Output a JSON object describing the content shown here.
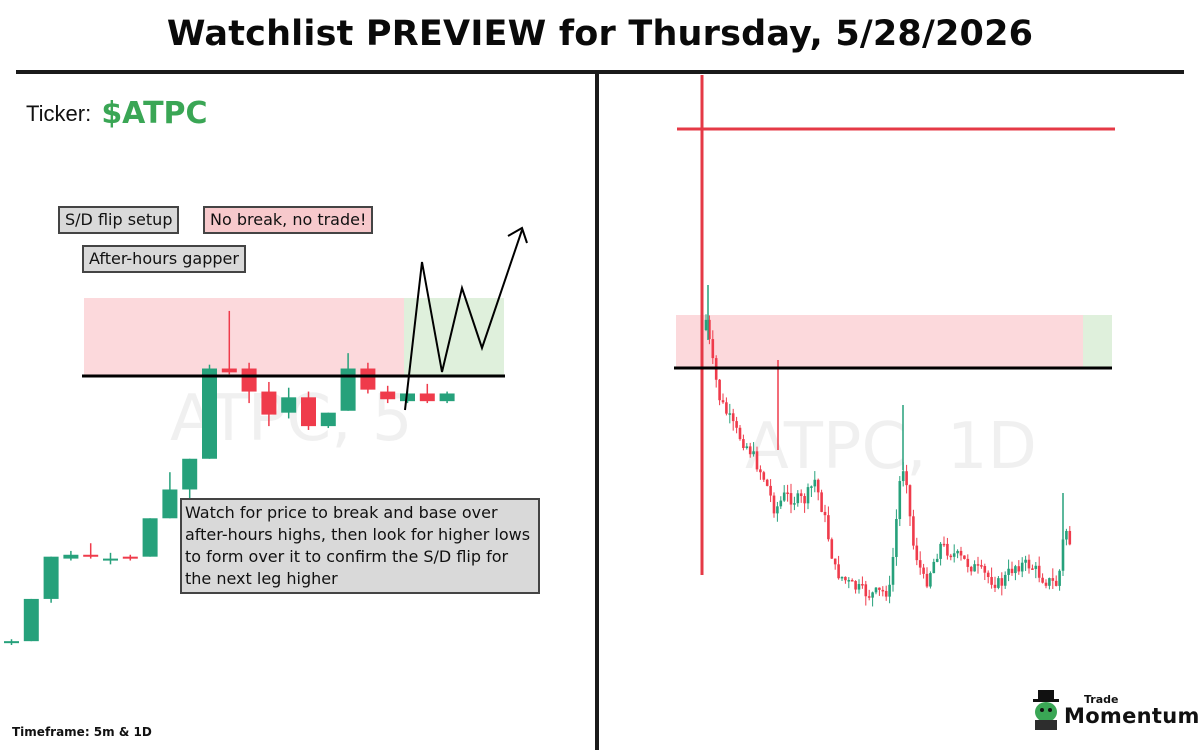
{
  "header": {
    "title": "Watchlist PREVIEW for Thursday, 5/28/2026"
  },
  "ticker": {
    "label": "Ticker:",
    "symbol": "$ATPC"
  },
  "tags": {
    "setup": "S/D flip setup",
    "warning": "No break, no trade!",
    "gapper": "After-hours gapper"
  },
  "note": "Watch for price to break and base over after-hours highs, then look for higher lows to form over it to confirm the S/D flip for the next leg higher",
  "footer": {
    "timeframe": "Timeframe: 5m & 1D"
  },
  "brand": {
    "line1": "Trade",
    "line2": "Momentum"
  },
  "colors": {
    "up": "#26a17b",
    "down": "#ef3b4b",
    "supply_zone": "#fcd9dc",
    "target_zone": "#dff0dc",
    "level": "#000000",
    "brand_green": "#3aa655"
  },
  "chart_data": [
    {
      "type": "candlestick",
      "watermark": "ATPC, 5",
      "timeframe": "5m",
      "key_level": "after-hours high (breakout line)",
      "supply_zone": "above key level",
      "candles": [
        {
          "o": 0.1,
          "h": 0.3,
          "l": 0.0,
          "c": 0.2
        },
        {
          "o": 0.2,
          "h": 2.4,
          "l": 0.2,
          "c": 2.4
        },
        {
          "o": 2.4,
          "h": 4.6,
          "l": 2.2,
          "c": 4.6
        },
        {
          "o": 4.5,
          "h": 4.9,
          "l": 4.4,
          "c": 4.7
        },
        {
          "o": 4.7,
          "h": 5.3,
          "l": 4.5,
          "c": 4.6
        },
        {
          "o": 4.5,
          "h": 4.8,
          "l": 4.2,
          "c": 4.5
        },
        {
          "o": 4.6,
          "h": 4.7,
          "l": 4.4,
          "c": 4.5
        },
        {
          "o": 4.6,
          "h": 6.6,
          "l": 4.6,
          "c": 6.6
        },
        {
          "o": 6.6,
          "h": 9.0,
          "l": 6.6,
          "c": 8.1
        },
        {
          "o": 8.1,
          "h": 9.7,
          "l": 7.2,
          "c": 9.7
        },
        {
          "o": 9.7,
          "h": 14.6,
          "l": 9.7,
          "c": 14.4
        },
        {
          "o": 14.4,
          "h": 17.4,
          "l": 14.1,
          "c": 14.2
        },
        {
          "o": 14.4,
          "h": 14.7,
          "l": 12.6,
          "c": 13.2
        },
        {
          "o": 13.2,
          "h": 13.7,
          "l": 11.4,
          "c": 12.0
        },
        {
          "o": 12.1,
          "h": 13.4,
          "l": 11.8,
          "c": 12.9
        },
        {
          "o": 12.9,
          "h": 13.2,
          "l": 11.2,
          "c": 11.4
        },
        {
          "o": 11.4,
          "h": 12.1,
          "l": 11.3,
          "c": 12.1
        },
        {
          "o": 12.2,
          "h": 15.2,
          "l": 12.2,
          "c": 14.4
        },
        {
          "o": 14.4,
          "h": 14.7,
          "l": 13.1,
          "c": 13.3
        },
        {
          "o": 13.2,
          "h": 13.5,
          "l": 12.6,
          "c": 12.8
        },
        {
          "o": 12.7,
          "h": 13.3,
          "l": 12.6,
          "c": 13.1
        },
        {
          "o": 13.1,
          "h": 13.6,
          "l": 12.6,
          "c": 12.7
        },
        {
          "o": 12.7,
          "h": 13.2,
          "l": 12.6,
          "c": 13.1
        }
      ],
      "projection": "breakout above level, base, higher lows, continuation higher"
    },
    {
      "type": "candlestick",
      "watermark": "ATPC, 1D",
      "timeframe": "1D",
      "key_level": "after-hours high (breakout line)",
      "supply_zone": "above key level",
      "resistance_line": "upper red horizontal line",
      "trend": "initial spike then decline and consolidation near lows, recent small pop"
    }
  ]
}
